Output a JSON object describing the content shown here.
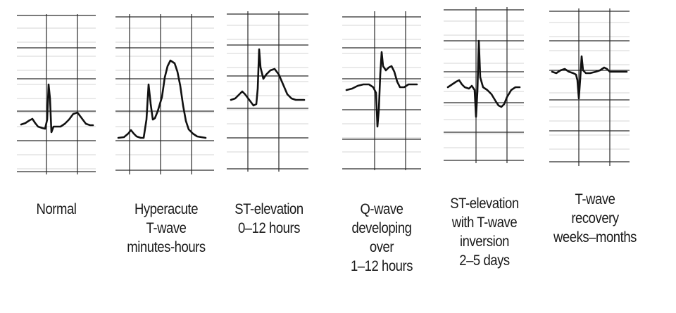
{
  "stages": [
    {
      "id": "normal",
      "lines": [
        "Normal"
      ]
    },
    {
      "id": "hyperacute",
      "lines": [
        "Hyperacute",
        "T-wave",
        "minutes-hours"
      ]
    },
    {
      "id": "st-elevation",
      "lines": [
        "ST-elevation",
        "0–12 hours"
      ]
    },
    {
      "id": "q-wave",
      "lines": [
        "Q-wave",
        "developing",
        "over",
        "1–12 hours"
      ]
    },
    {
      "id": "st-t-inversion",
      "lines": [
        "ST-elevation",
        "with T-wave",
        "inversion",
        "2–5 days"
      ]
    },
    {
      "id": "t-recovery",
      "lines": [
        "T-wave",
        "recovery",
        "weeks–months"
      ]
    }
  ]
}
